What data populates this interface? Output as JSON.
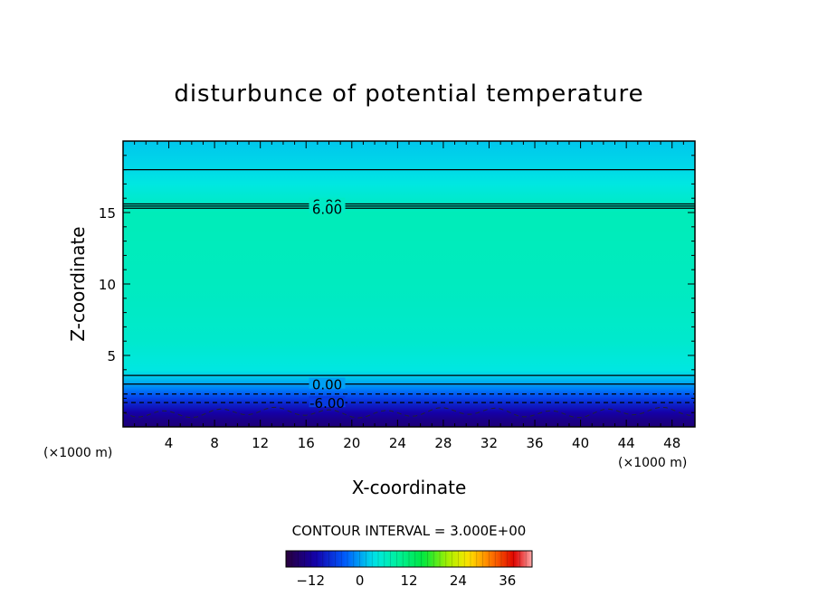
{
  "chart_data": {
    "type": "heatmap",
    "title": "disturbunce of potential temperature",
    "xlabel": "X-coordinate",
    "ylabel": "Z-coordinate",
    "x_unit": "(×1000 m)",
    "z_unit": "(×1000 m)",
    "xlim": [
      0,
      50
    ],
    "ylim": [
      0,
      20
    ],
    "x_ticks": [
      4,
      8,
      12,
      16,
      20,
      24,
      28,
      32,
      36,
      40,
      44,
      48
    ],
    "y_ticks": [
      5,
      10,
      15
    ],
    "field_profile": [
      {
        "z": 0.0,
        "value": -14
      },
      {
        "z": 0.5,
        "value": -13
      },
      {
        "z": 1.0,
        "value": -11
      },
      {
        "z": 1.6,
        "value": -8
      },
      {
        "z": 2.1,
        "value": -5
      },
      {
        "z": 2.6,
        "value": -2
      },
      {
        "z": 3.2,
        "value": 1
      },
      {
        "z": 4.0,
        "value": 4
      },
      {
        "z": 6.0,
        "value": 5.5
      },
      {
        "z": 10.0,
        "value": 6.5
      },
      {
        "z": 15.0,
        "value": 7
      },
      {
        "z": 15.5,
        "value": 6
      },
      {
        "z": 17.0,
        "value": 4
      },
      {
        "z": 18.0,
        "value": 3
      },
      {
        "z": 20.0,
        "value": 2
      }
    ],
    "contours": [
      {
        "z": 18.0,
        "value": 3,
        "style": "solid"
      },
      {
        "z": 15.6,
        "value": 6,
        "style": "solid",
        "label": "6.00"
      },
      {
        "z": 15.45,
        "value": 6,
        "style": "solid"
      },
      {
        "z": 15.3,
        "value": 6,
        "style": "solid",
        "label": "6.00"
      },
      {
        "z": 3.6,
        "value": 3,
        "style": "solid"
      },
      {
        "z": 3.0,
        "value": 0,
        "style": "solid",
        "label": "0.00"
      },
      {
        "z": 2.3,
        "value": -3,
        "style": "dashed"
      },
      {
        "z": 1.7,
        "value": -6,
        "style": "dashed",
        "label": "-6.00"
      },
      {
        "z": 1.0,
        "value": -9,
        "style": "dashed",
        "wavy": true
      }
    ],
    "contour_interval_text": "CONTOUR INTERVAL = 3.000E+00",
    "colorbar": {
      "range": [
        -18,
        42
      ],
      "ticks": [
        -12,
        0,
        12,
        24,
        36
      ]
    }
  }
}
